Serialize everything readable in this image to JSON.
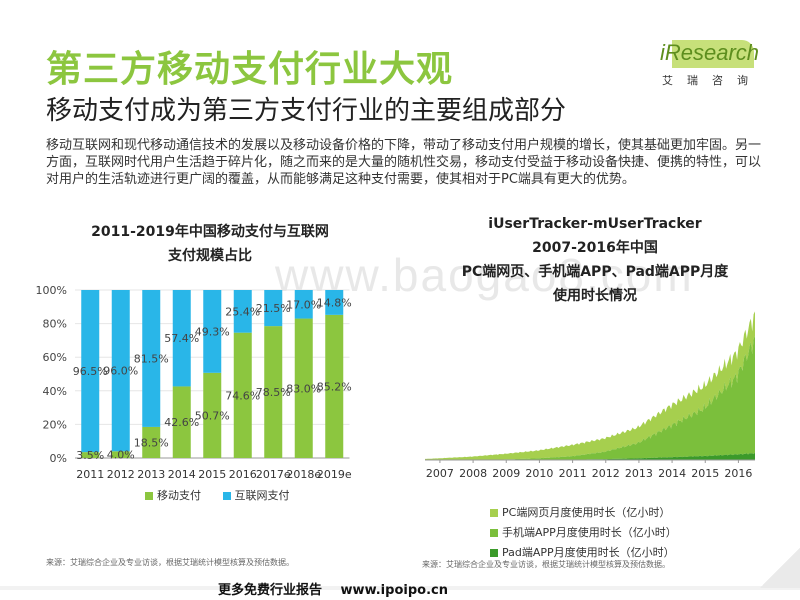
{
  "header": {
    "title": "第三方移动支付行业大观",
    "subtitle": "移动支付成为第三方支付行业的主要组成部分",
    "logo_brand": "iResearch",
    "logo_cn": "艾瑞咨询"
  },
  "description": "移动互联网和现代移动通信技术的发展以及移动设备价格的下降，带动了移动支付用户规模的增长，使其基础更加牢固。另一方面，互联网时代用户生活趋于碎片化，随之而来的是大量的随机性交易，移动支付受益于移动设备快捷、便携的特性，可以对用户的生活轨迹进行更广阔的覆盖，从而能够满足这种支付需要，使其相对于PC端具有更大的优势。",
  "watermark": "www.baogao8.com",
  "colors": {
    "green": "#8cc63f",
    "blue": "#29b6e8",
    "title_green": "#8cc63f",
    "area_light": "#a6cf4e",
    "area_mid": "#7bbf3c",
    "area_dark": "#3b9a2a"
  },
  "chart_data": [
    {
      "type": "bar",
      "stacked": true,
      "title_line1": "2011-2019年中国移动支付与互联网",
      "title_line2": "支付规模占比",
      "categories": [
        "2011",
        "2012",
        "2013",
        "2014",
        "2015",
        "2016",
        "2017e",
        "2018e",
        "2019e"
      ],
      "series": [
        {
          "name": "移动支付",
          "values": [
            3.5,
            4.0,
            18.5,
            42.6,
            50.7,
            74.6,
            78.5,
            83.0,
            85.2
          ],
          "labels": [
            "3.5%",
            "4.0%",
            "18.5%",
            "42.6%",
            "50.7%",
            "74.6%",
            "78.5%",
            "83.0%",
            "85.2%"
          ]
        },
        {
          "name": "互联网支付",
          "values": [
            96.5,
            96.0,
            81.5,
            57.4,
            49.3,
            25.4,
            21.5,
            17.0,
            14.8
          ],
          "labels": [
            "96.5%",
            "96.0%",
            "81.5%",
            "57.4%",
            "49.3%",
            "25.4%",
            "21.5%",
            "17.0%",
            "14.8%"
          ]
        }
      ],
      "y_ticks": [
        "0%",
        "20%",
        "40%",
        "60%",
        "80%",
        "100%"
      ],
      "ylim": [
        0,
        100
      ],
      "legend_position": "bottom"
    },
    {
      "type": "area",
      "stacked": true,
      "title_lines": [
        "iUserTracker-mUserTracker",
        "2007-2016年中国",
        "PC端网页、手机端APP、Pad端APP月度",
        "使用时长情况"
      ],
      "x_ticks": [
        "2007",
        "2008",
        "2009",
        "2010",
        "2011",
        "2012",
        "2013",
        "2014",
        "2015",
        "2016"
      ],
      "x_range": [
        2006.6,
        2016.55
      ],
      "unit": "亿小时",
      "series": [
        {
          "name": "PC端网页月度使用时长（亿小时）",
          "points": [
            [
              2006.6,
              0.2
            ],
            [
              2007,
              0.3
            ],
            [
              2008,
              0.6
            ],
            [
              2009,
              1.0
            ],
            [
              2010,
              1.4
            ],
            [
              2011,
              2.0
            ],
            [
              2012,
              2.4
            ],
            [
              2013,
              2.8
            ],
            [
              2014,
              3.6
            ],
            [
              2015,
              4.0
            ],
            [
              2016,
              4.2
            ],
            [
              2016.55,
              4.3
            ]
          ]
        },
        {
          "name": "手机端APP月度使用时长（亿小时）",
          "points": [
            [
              2006.6,
              0
            ],
            [
              2007,
              0
            ],
            [
              2008,
              0
            ],
            [
              2009,
              0.1
            ],
            [
              2010,
              0.3
            ],
            [
              2011,
              0.6
            ],
            [
              2012,
              1.3
            ],
            [
              2013,
              2.7
            ],
            [
              2014,
              5.6
            ],
            [
              2015,
              8.5
            ],
            [
              2016,
              14.0
            ],
            [
              2016.55,
              20.5
            ]
          ]
        },
        {
          "name": "Pad端APP月度使用时长（亿小时）",
          "points": [
            [
              2006.6,
              0
            ],
            [
              2007,
              0
            ],
            [
              2008,
              0
            ],
            [
              2009,
              0
            ],
            [
              2010,
              0
            ],
            [
              2011,
              0.05
            ],
            [
              2012,
              0.15
            ],
            [
              2013,
              0.3
            ],
            [
              2014,
              0.5
            ],
            [
              2015,
              0.7
            ],
            [
              2016,
              1.0
            ],
            [
              2016.55,
              1.2
            ]
          ]
        }
      ],
      "ylim": [
        0,
        26
      ],
      "legend_position": "bottom"
    }
  ],
  "left_legend": [
    "移动支付",
    "互联网支付"
  ],
  "right_legend": [
    "PC端网页月度使用时长（亿小时）",
    "手机端APP月度使用时长（亿小时）",
    "Pad端APP月度使用时长（亿小时）"
  ],
  "sources": {
    "left": "来源：艾瑞综合企业及专业访谈，根据艾瑞统计模型核算及预估数据。",
    "right": "来源：艾瑞综合企业及专业访谈，根据艾瑞统计模型核算及预估数据。"
  },
  "footer": {
    "text": "更多免费行业报告",
    "url": "www.ipoipo.cn"
  }
}
